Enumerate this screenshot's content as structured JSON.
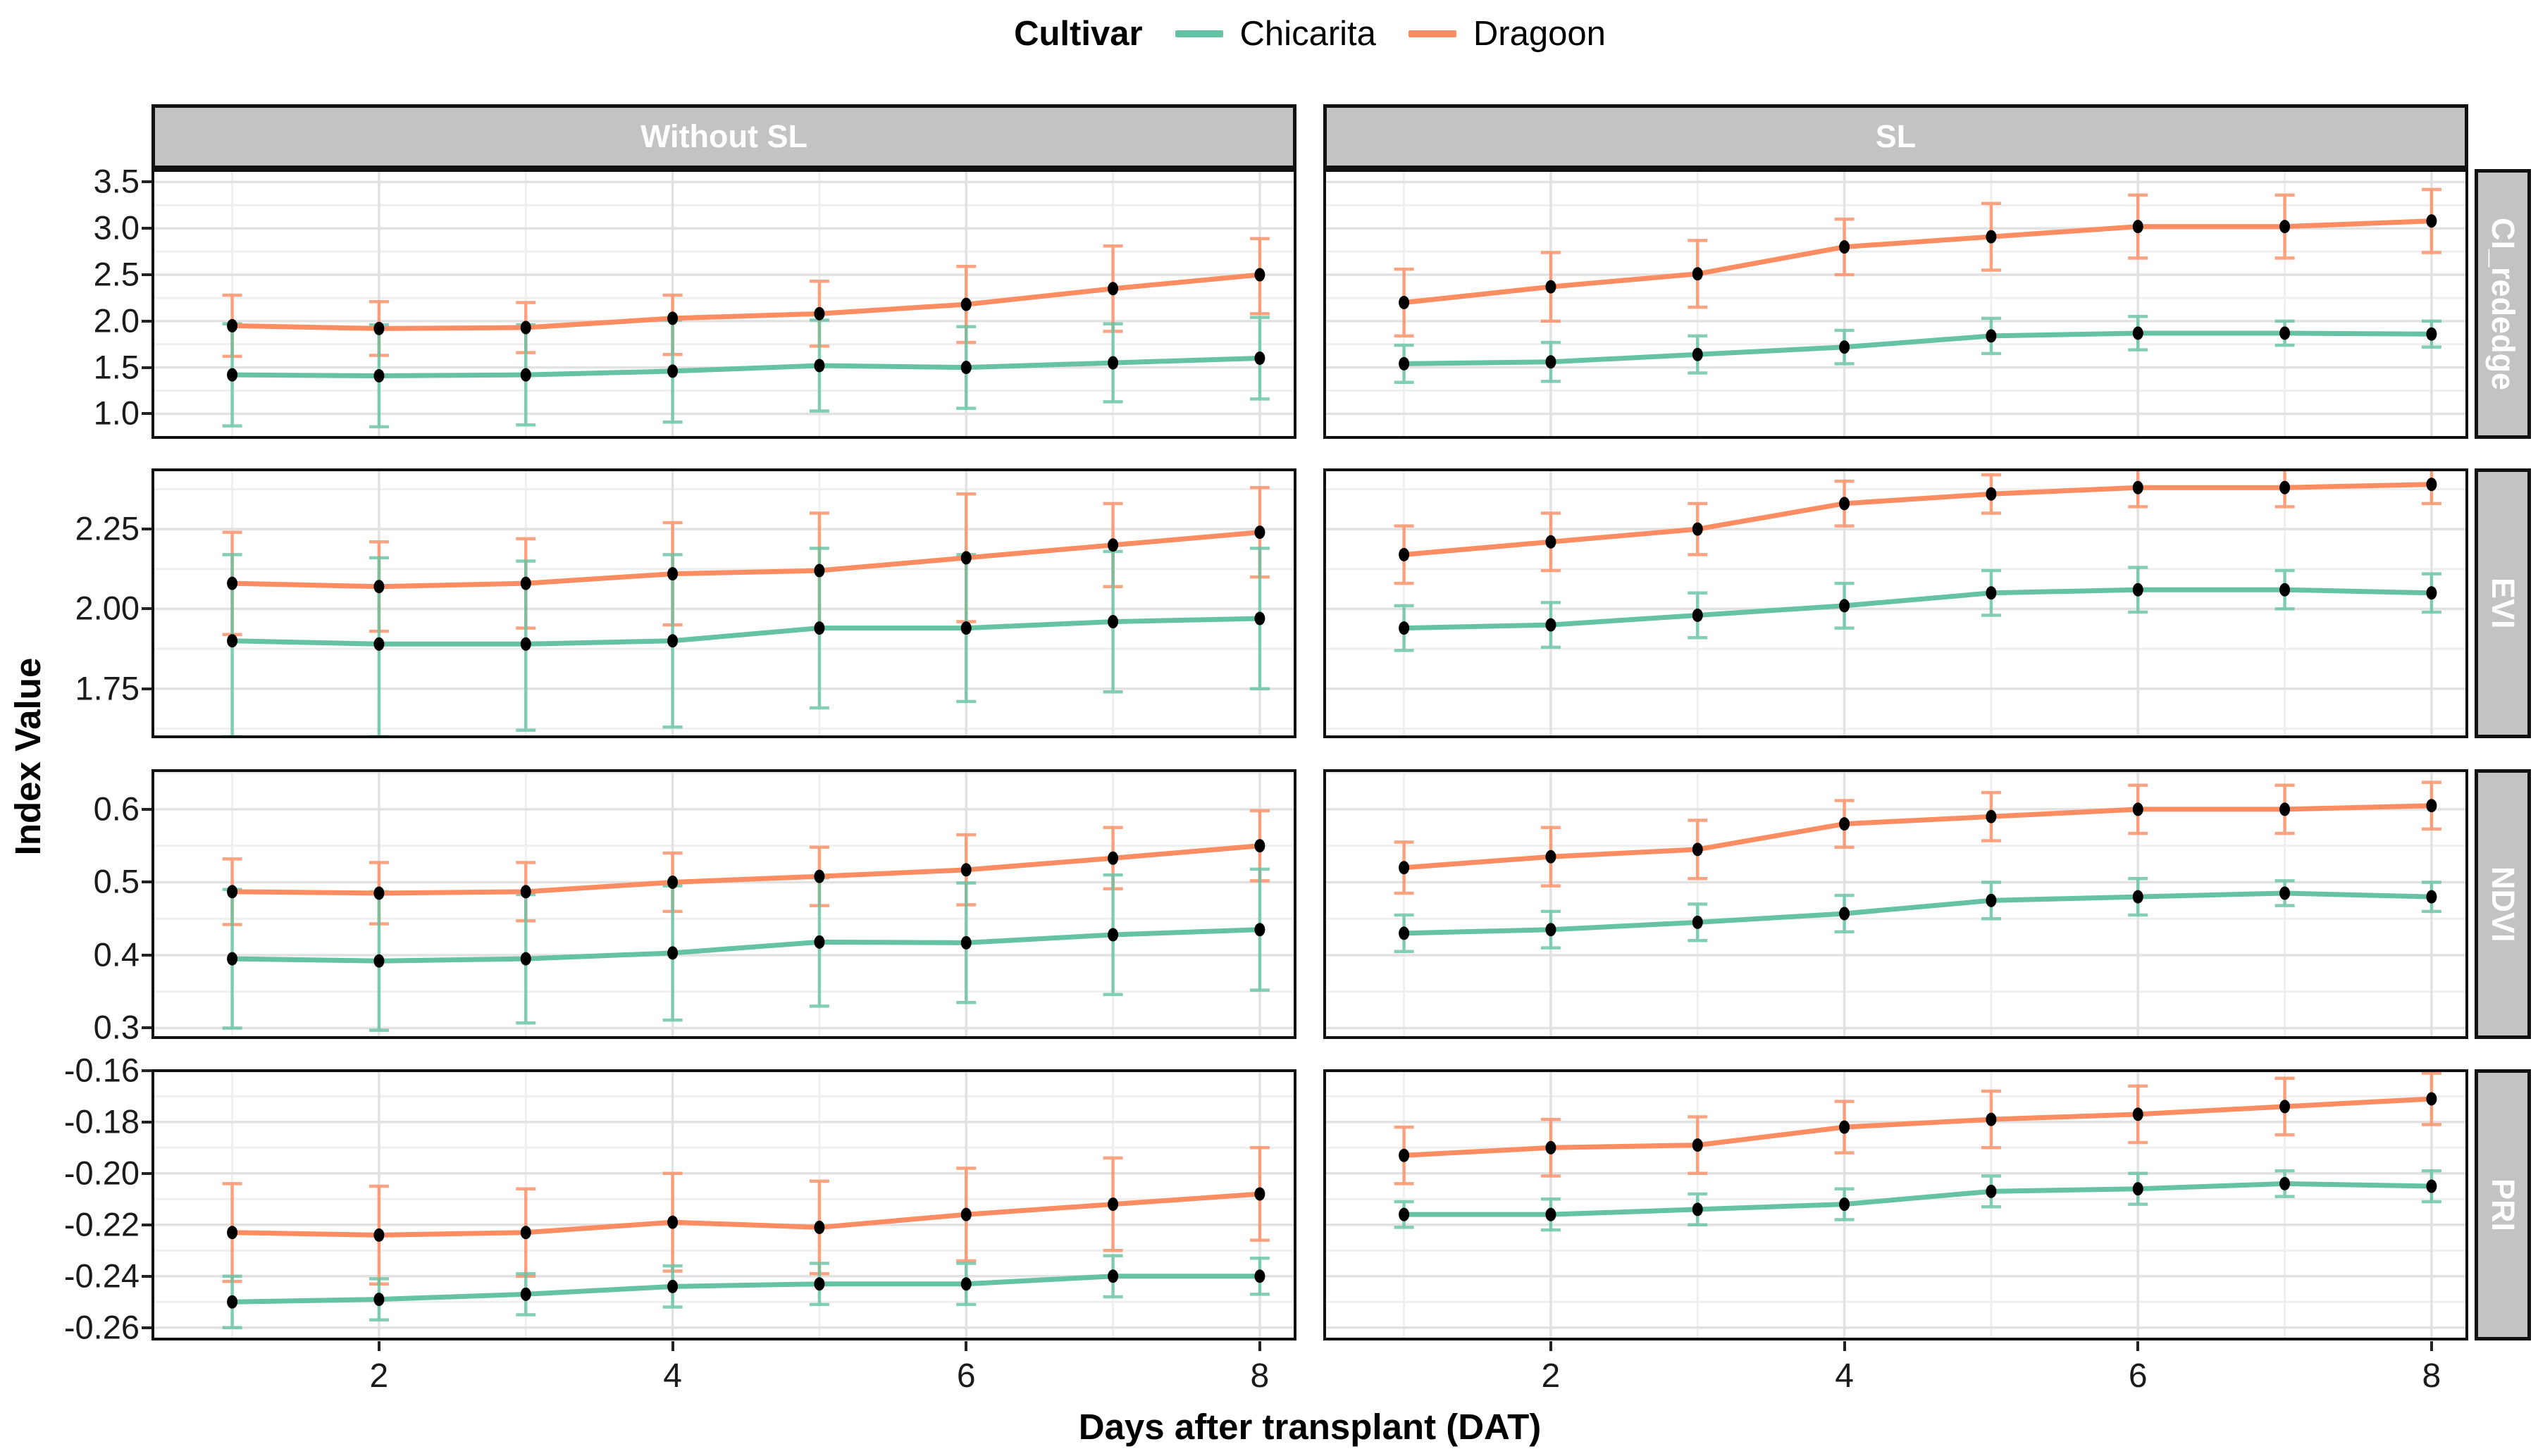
{
  "legend": {
    "title": "Cultivar",
    "entries": [
      {
        "label": "Chicarita",
        "color": "#66C2A5"
      },
      {
        "label": "Dragoon",
        "color": "#FC8D62"
      }
    ]
  },
  "chart_data": {
    "type": "line",
    "title": "",
    "xlabel": "Days after transplant (DAT)",
    "ylabel": "Index Value",
    "x": [
      1,
      2,
      3,
      4,
      5,
      6,
      7,
      8
    ],
    "x_ticks": [
      2,
      4,
      6,
      8
    ],
    "facet_columns": [
      "Without SL",
      "SL"
    ],
    "facet_rows": [
      {
        "label": "CI_rededge",
        "ylim": [
          0.73,
          3.64
        ],
        "y_tick_labels": [
          "3.5",
          "3.0",
          "2.5",
          "2.0",
          "1.5",
          "1.0"
        ],
        "y_tick_values": [
          3.5,
          3.0,
          2.5,
          2.0,
          1.5,
          1.0
        ],
        "panels": [
          {
            "column": "Without SL",
            "series": [
              {
                "name": "Chicarita",
                "mean": [
                  1.42,
                  1.41,
                  1.42,
                  1.46,
                  1.52,
                  1.5,
                  1.55,
                  1.6
                ],
                "lower": [
                  0.87,
                  0.86,
                  0.88,
                  0.91,
                  1.03,
                  1.06,
                  1.13,
                  1.16
                ],
                "upper": [
                  1.97,
                  1.96,
                  1.96,
                  2.01,
                  2.01,
                  1.94,
                  1.97,
                  2.04
                ]
              },
              {
                "name": "Dragoon",
                "mean": [
                  1.95,
                  1.92,
                  1.93,
                  2.03,
                  2.08,
                  2.18,
                  2.35,
                  2.5
                ],
                "lower": [
                  1.62,
                  1.63,
                  1.66,
                  1.64,
                  1.73,
                  1.77,
                  1.89,
                  2.08
                ],
                "upper": [
                  2.28,
                  2.21,
                  2.2,
                  2.28,
                  2.43,
                  2.59,
                  2.81,
                  2.89
                ]
              }
            ]
          },
          {
            "column": "SL",
            "series": [
              {
                "name": "Chicarita",
                "mean": [
                  1.54,
                  1.56,
                  1.64,
                  1.72,
                  1.84,
                  1.87,
                  1.87,
                  1.86
                ],
                "lower": [
                  1.34,
                  1.35,
                  1.44,
                  1.54,
                  1.65,
                  1.69,
                  1.74,
                  1.72
                ],
                "upper": [
                  1.74,
                  1.77,
                  1.84,
                  1.9,
                  2.03,
                  2.05,
                  2.0,
                  2.0
                ]
              },
              {
                "name": "Dragoon",
                "mean": [
                  2.2,
                  2.37,
                  2.51,
                  2.8,
                  2.91,
                  3.02,
                  3.02,
                  3.08
                ],
                "lower": [
                  1.84,
                  2.0,
                  2.15,
                  2.5,
                  2.55,
                  2.68,
                  2.68,
                  2.74
                ],
                "upper": [
                  2.56,
                  2.74,
                  2.87,
                  3.1,
                  3.27,
                  3.36,
                  3.36,
                  3.42
                ]
              }
            ]
          }
        ]
      },
      {
        "label": "EVI",
        "ylim": [
          1.595,
          2.44
        ],
        "y_tick_labels": [
          "2.25",
          "2.00",
          "1.75"
        ],
        "y_tick_values": [
          2.25,
          2.0,
          1.75
        ],
        "panels": [
          {
            "column": "Without SL",
            "series": [
              {
                "name": "Chicarita",
                "mean": [
                  1.9,
                  1.89,
                  1.89,
                  1.9,
                  1.94,
                  1.94,
                  1.96,
                  1.97
                ],
                "lower": [
                  1.6,
                  1.6,
                  1.62,
                  1.63,
                  1.69,
                  1.71,
                  1.74,
                  1.75
                ],
                "upper": [
                  2.17,
                  2.16,
                  2.15,
                  2.17,
                  2.19,
                  2.17,
                  2.18,
                  2.19
                ]
              },
              {
                "name": "Dragoon",
                "mean": [
                  2.08,
                  2.07,
                  2.08,
                  2.11,
                  2.12,
                  2.16,
                  2.2,
                  2.24
                ],
                "lower": [
                  1.92,
                  1.93,
                  1.94,
                  1.95,
                  1.94,
                  1.96,
                  2.07,
                  2.1
                ],
                "upper": [
                  2.24,
                  2.21,
                  2.22,
                  2.27,
                  2.3,
                  2.36,
                  2.33,
                  2.38
                ]
              }
            ]
          },
          {
            "column": "SL",
            "series": [
              {
                "name": "Chicarita",
                "mean": [
                  1.94,
                  1.95,
                  1.98,
                  2.01,
                  2.05,
                  2.06,
                  2.06,
                  2.05
                ],
                "lower": [
                  1.87,
                  1.88,
                  1.91,
                  1.94,
                  1.98,
                  1.99,
                  2.0,
                  1.99
                ],
                "upper": [
                  2.01,
                  2.02,
                  2.05,
                  2.08,
                  2.12,
                  2.13,
                  2.12,
                  2.11
                ]
              },
              {
                "name": "Dragoon",
                "mean": [
                  2.17,
                  2.21,
                  2.25,
                  2.33,
                  2.36,
                  2.38,
                  2.38,
                  2.39
                ],
                "lower": [
                  2.08,
                  2.12,
                  2.17,
                  2.26,
                  2.3,
                  2.32,
                  2.32,
                  2.33
                ],
                "upper": [
                  2.26,
                  2.3,
                  2.33,
                  2.4,
                  2.42,
                  2.44,
                  2.44,
                  2.45
                ]
              }
            ]
          }
        ]
      },
      {
        "label": "NDVI",
        "ylim": [
          0.285,
          0.655
        ],
        "y_tick_labels": [
          "0.6",
          "0.5",
          "0.4",
          "0.3"
        ],
        "y_tick_values": [
          0.6,
          0.5,
          0.4,
          0.3
        ],
        "panels": [
          {
            "column": "Without SL",
            "series": [
              {
                "name": "Chicarita",
                "mean": [
                  0.395,
                  0.392,
                  0.395,
                  0.403,
                  0.418,
                  0.417,
                  0.428,
                  0.435
                ],
                "lower": [
                  0.3,
                  0.297,
                  0.307,
                  0.311,
                  0.33,
                  0.335,
                  0.346,
                  0.352
                ],
                "upper": [
                  0.49,
                  0.487,
                  0.483,
                  0.495,
                  0.506,
                  0.499,
                  0.51,
                  0.518
                ]
              },
              {
                "name": "Dragoon",
                "mean": [
                  0.487,
                  0.485,
                  0.487,
                  0.5,
                  0.508,
                  0.517,
                  0.533,
                  0.55
                ],
                "lower": [
                  0.442,
                  0.443,
                  0.447,
                  0.46,
                  0.468,
                  0.469,
                  0.491,
                  0.502
                ],
                "upper": [
                  0.532,
                  0.527,
                  0.527,
                  0.54,
                  0.548,
                  0.565,
                  0.575,
                  0.598
                ]
              }
            ]
          },
          {
            "column": "SL",
            "series": [
              {
                "name": "Chicarita",
                "mean": [
                  0.43,
                  0.435,
                  0.445,
                  0.457,
                  0.475,
                  0.48,
                  0.485,
                  0.48
                ],
                "lower": [
                  0.405,
                  0.41,
                  0.42,
                  0.432,
                  0.45,
                  0.455,
                  0.468,
                  0.46
                ],
                "upper": [
                  0.455,
                  0.46,
                  0.47,
                  0.482,
                  0.5,
                  0.505,
                  0.502,
                  0.5
                ]
              },
              {
                "name": "Dragoon",
                "mean": [
                  0.52,
                  0.535,
                  0.545,
                  0.58,
                  0.59,
                  0.6,
                  0.6,
                  0.605
                ],
                "lower": [
                  0.485,
                  0.495,
                  0.505,
                  0.548,
                  0.557,
                  0.567,
                  0.567,
                  0.573
                ],
                "upper": [
                  0.555,
                  0.575,
                  0.585,
                  0.612,
                  0.623,
                  0.633,
                  0.633,
                  0.637
                ]
              }
            ]
          }
        ]
      },
      {
        "label": "PRI",
        "ylim": [
          -0.265,
          -0.1595
        ],
        "y_tick_labels": [
          "-0.16",
          "-0.18",
          "-0.20",
          "-0.22",
          "-0.24",
          "-0.26"
        ],
        "y_tick_values": [
          -0.16,
          -0.18,
          -0.2,
          -0.22,
          -0.24,
          -0.26
        ],
        "panels": [
          {
            "column": "Without SL",
            "series": [
              {
                "name": "Chicarita",
                "mean": [
                  -0.25,
                  -0.249,
                  -0.247,
                  -0.244,
                  -0.243,
                  -0.243,
                  -0.24,
                  -0.24
                ],
                "lower": [
                  -0.26,
                  -0.257,
                  -0.255,
                  -0.252,
                  -0.251,
                  -0.251,
                  -0.248,
                  -0.247
                ],
                "upper": [
                  -0.24,
                  -0.241,
                  -0.239,
                  -0.236,
                  -0.235,
                  -0.235,
                  -0.232,
                  -0.233
                ]
              },
              {
                "name": "Dragoon",
                "mean": [
                  -0.223,
                  -0.224,
                  -0.223,
                  -0.219,
                  -0.221,
                  -0.216,
                  -0.212,
                  -0.208
                ],
                "lower": [
                  -0.242,
                  -0.243,
                  -0.24,
                  -0.238,
                  -0.239,
                  -0.234,
                  -0.23,
                  -0.226
                ],
                "upper": [
                  -0.204,
                  -0.205,
                  -0.206,
                  -0.2,
                  -0.203,
                  -0.198,
                  -0.194,
                  -0.19
                ]
              }
            ]
          },
          {
            "column": "SL",
            "series": [
              {
                "name": "Chicarita",
                "mean": [
                  -0.216,
                  -0.216,
                  -0.214,
                  -0.212,
                  -0.207,
                  -0.206,
                  -0.204,
                  -0.205
                ],
                "lower": [
                  -0.221,
                  -0.222,
                  -0.22,
                  -0.218,
                  -0.213,
                  -0.212,
                  -0.209,
                  -0.211
                ],
                "upper": [
                  -0.211,
                  -0.21,
                  -0.208,
                  -0.206,
                  -0.201,
                  -0.2,
                  -0.199,
                  -0.199
                ]
              },
              {
                "name": "Dragoon",
                "mean": [
                  -0.193,
                  -0.19,
                  -0.189,
                  -0.182,
                  -0.179,
                  -0.177,
                  -0.174,
                  -0.171
                ],
                "lower": [
                  -0.204,
                  -0.201,
                  -0.2,
                  -0.192,
                  -0.19,
                  -0.188,
                  -0.185,
                  -0.181
                ],
                "upper": [
                  -0.182,
                  -0.179,
                  -0.178,
                  -0.172,
                  -0.168,
                  -0.166,
                  -0.163,
                  -0.161
                ]
              }
            ]
          }
        ]
      }
    ]
  }
}
